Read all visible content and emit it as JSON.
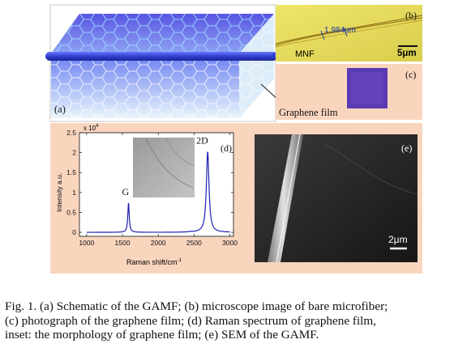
{
  "panels": {
    "a": {
      "label": "(a)",
      "graphene_label": "Graphene film",
      "colors": {
        "background": "#ffffff",
        "slab": "#e9f5fc",
        "hex_top": "#5c59e4",
        "fiber": "#3c44d8"
      }
    },
    "b": {
      "label": "(b)",
      "measurement": "1.984um",
      "mnf_label": "MNF",
      "scale_label": "5μm",
      "colors": {
        "background": "#e8dd5c"
      }
    },
    "c": {
      "label": "(c)",
      "colors": {
        "background": "#f9d5be",
        "film": "#5a3ab0"
      }
    },
    "d": {
      "label": "(d)",
      "colors": {
        "frame": "#f9d5be",
        "line": "#1f1fb0"
      }
    },
    "e": {
      "label": "(e)",
      "scale_label": "2μm",
      "colors": {
        "background": "#202020",
        "fiber": "#b8b8b8"
      }
    }
  },
  "chart_data": {
    "type": "line",
    "title": "",
    "xlabel": "Raman shift/cm",
    "xlabel_superscript": "-1",
    "ylabel": "Intensity a.u.",
    "y_multiplier": "x 10",
    "y_multiplier_exp": "4",
    "xlim": [
      900,
      3050
    ],
    "ylim": [
      -0.1,
      2.5
    ],
    "xticks": [
      1000,
      1500,
      2000,
      2500,
      3000
    ],
    "yticks": [
      0,
      0.5,
      1,
      1.5,
      2,
      2.5
    ],
    "ytick_labels": [
      "0",
      "0.5",
      "1",
      "1.5",
      "2",
      "2.5"
    ],
    "peaks": [
      {
        "name": "G",
        "x": 1585,
        "y": 0.73,
        "width": 12
      },
      {
        "name": "2D",
        "x": 2690,
        "y": 2.02,
        "width": 22
      },
      {
        "name": "",
        "x": 2450,
        "y": 0.01,
        "width": 25
      }
    ],
    "baseline": 0.0,
    "series": [
      {
        "x_start": 1000,
        "x_end": 3000
      }
    ]
  },
  "caption": {
    "lines": [
      "Fig. 1.   (a) Schematic of the GAMF; (b) microscope image of bare microfiber;",
      "(c) photograph of the graphene film; (d) Raman spectrum of graphene film,",
      "inset: the morphology of graphene film; (e) SEM of the GAMF."
    ]
  }
}
